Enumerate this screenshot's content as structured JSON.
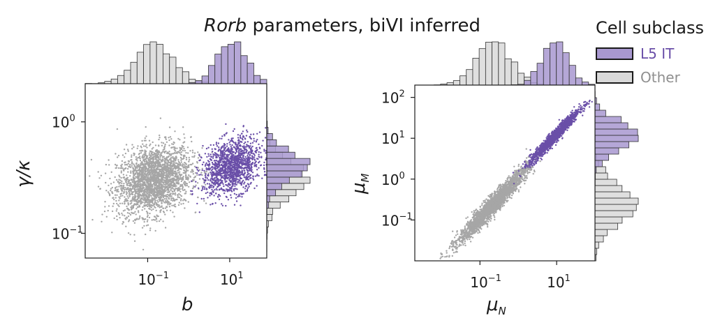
{
  "figure": {
    "title_italic": "Rorb",
    "title_rest": " parameters, biVI inferred"
  },
  "legend": {
    "title": "Cell subclass",
    "items": [
      {
        "label": "L5 IT",
        "color": "#6a4fa8",
        "fill": "#a898d0",
        "text_color": "#6a4fa8"
      },
      {
        "label": "Other",
        "color": "#a6a6a6",
        "fill": "#d9d9d9",
        "text_color": "#8f8f8f"
      }
    ]
  },
  "chart_data": [
    {
      "type": "scatter",
      "title": "",
      "xlabel": "b",
      "ylabel": "γ/κ",
      "x_scale": "log",
      "y_scale": "log",
      "xlim": [
        0.003,
        80
      ],
      "ylim": [
        0.06,
        2.2
      ],
      "x_ticks": [
        {
          "value": 0.1,
          "label": "10",
          "exp": "−1"
        },
        {
          "value": 10,
          "label": "10",
          "exp": "1"
        }
      ],
      "y_ticks": [
        {
          "value": 1,
          "label": "10",
          "exp": "0"
        },
        {
          "value": 0.1,
          "label": "10",
          "exp": "−1"
        }
      ],
      "series": [
        {
          "name": "L5 IT",
          "color": "#6a4fa8",
          "n_points": 1400,
          "log10_x_center": 1.05,
          "log10_x_spread": 0.35,
          "log10_y_center": -0.4,
          "log10_y_spread": 0.12
        },
        {
          "name": "Other",
          "color": "#a6a6a6",
          "n_points": 2600,
          "log10_x_center": -0.85,
          "log10_x_spread": 0.45,
          "log10_y_center": -0.52,
          "log10_y_spread": 0.15
        }
      ]
    },
    {
      "type": "scatter",
      "title": "",
      "xlabel": "μN",
      "ylabel": "μM",
      "x_scale": "log",
      "y_scale": "log",
      "xlim": [
        0.002,
        100
      ],
      "ylim": [
        0.01,
        200
      ],
      "x_ticks": [
        {
          "value": 0.1,
          "label": "10",
          "exp": "−1"
        },
        {
          "value": 10,
          "label": "10",
          "exp": "1"
        }
      ],
      "y_ticks": [
        {
          "value": 100,
          "label": "10",
          "exp": "2"
        },
        {
          "value": 10,
          "label": "10",
          "exp": "1"
        },
        {
          "value": 1,
          "label": "10",
          "exp": "0"
        },
        {
          "value": 0.1,
          "label": "10",
          "exp": "−1"
        }
      ],
      "series": [
        {
          "name": "L5 IT",
          "color": "#6a4fa8",
          "n_points": 1400,
          "log10_x_center": 0.95,
          "log10_x_spread": 0.32,
          "log10_y_center": 1.05,
          "log10_y_spread": 0.08
        },
        {
          "name": "Other",
          "color": "#a6a6a6",
          "n_points": 2600,
          "log10_x_center": -0.65,
          "log10_x_spread": 0.45,
          "log10_y_center": -0.62,
          "log10_y_spread": 0.12
        }
      ]
    }
  ]
}
